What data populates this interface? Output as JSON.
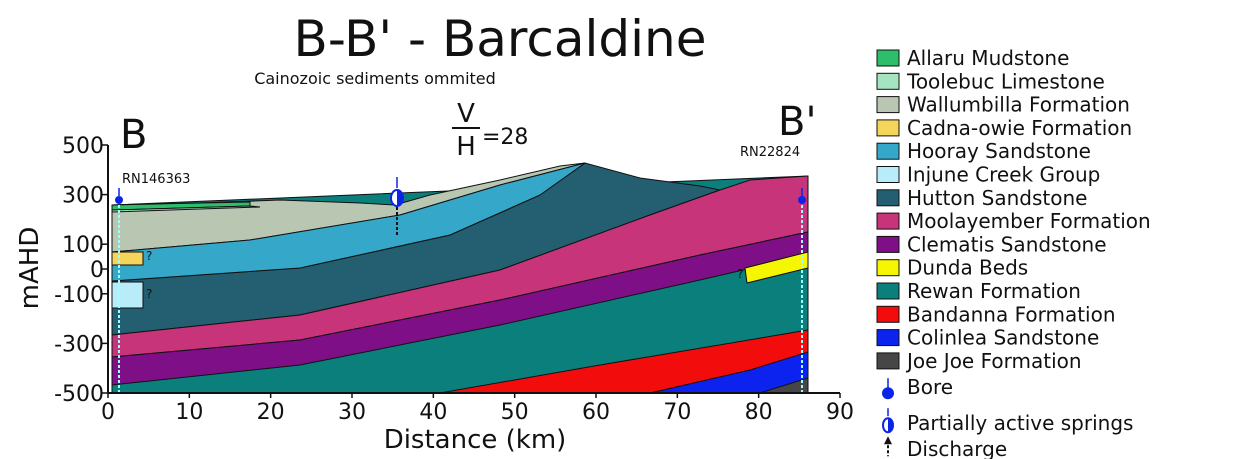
{
  "header": {
    "title": "B-B' - Barcaldine",
    "subtitle": "Cainozoic sediments ommited"
  },
  "section": {
    "start_label": "B",
    "end_label": "B'",
    "ratio_numerator": "V",
    "ratio_denominator": "H",
    "ratio_value": "=28",
    "bores": [
      "RN146363",
      "RN22824"
    ],
    "query_mark": "?"
  },
  "axes": {
    "y_label": "mAHD",
    "x_label": "Distance (km)",
    "y_ticks": [
      500,
      300,
      100,
      0,
      -100,
      -300,
      -500
    ],
    "x_ticks": [
      0,
      10,
      20,
      30,
      40,
      50,
      60,
      70,
      80,
      90
    ]
  },
  "legend": {
    "units": [
      {
        "label": "Allaru Mudstone",
        "color": "#2ebd6b"
      },
      {
        "label": "Toolebuc Limestone",
        "color": "#a6e3c0"
      },
      {
        "label": "Wallumbilla Formation",
        "color": "#b9c7b2"
      },
      {
        "label": "Cadna-owie Formation",
        "color": "#f5d45b"
      },
      {
        "label": "Hooray Sandstone",
        "color": "#35a7c9"
      },
      {
        "label": "Injune Creek Group",
        "color": "#b8ecf8"
      },
      {
        "label": "Hutton Sandstone",
        "color": "#235f70"
      },
      {
        "label": "Moolayember Formation",
        "color": "#c8347a"
      },
      {
        "label": "Clematis Sandstone",
        "color": "#7e0f87"
      },
      {
        "label": "Dunda Beds",
        "color": "#f6f600"
      },
      {
        "label": "Rewan Formation",
        "color": "#0a7f7c"
      },
      {
        "label": "Bandanna Formation",
        "color": "#f20c0c"
      },
      {
        "label": "Colinlea Sandstone",
        "color": "#0c22ee"
      },
      {
        "label": "Joe Joe Formation",
        "color": "#464646"
      }
    ],
    "symbols": [
      "Bore",
      "Partially active springs",
      "Discharge"
    ]
  }
}
